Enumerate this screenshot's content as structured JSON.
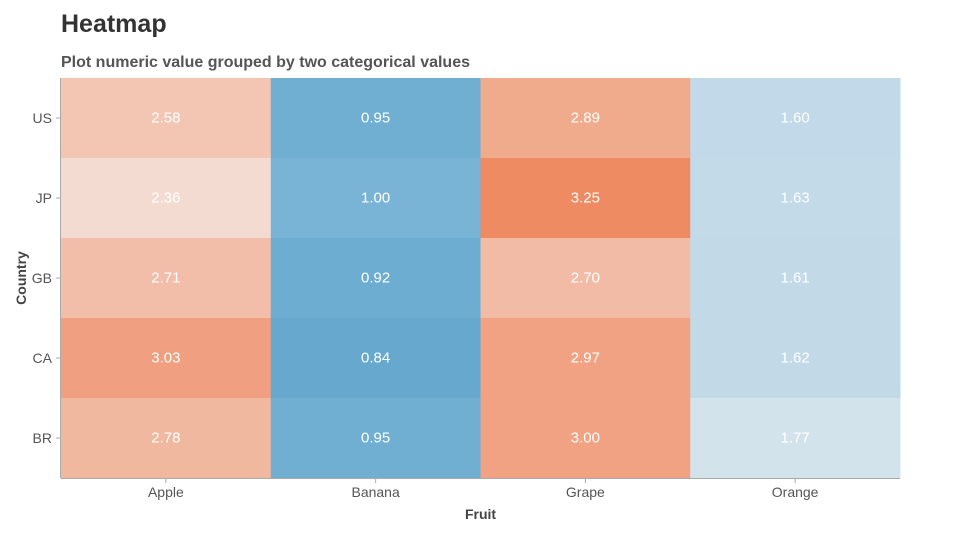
{
  "header": {
    "title": "Heatmap",
    "subtitle": "Plot numeric value grouped by two categorical values"
  },
  "chart_data": {
    "type": "heatmap",
    "xlabel": "Fruit",
    "ylabel": "Country",
    "x_categories": [
      "Apple",
      "Banana",
      "Grape",
      "Orange"
    ],
    "y_categories": [
      "US",
      "JP",
      "GB",
      "CA",
      "BR"
    ],
    "values": [
      [
        2.58,
        0.95,
        2.89,
        1.6
      ],
      [
        2.36,
        1.0,
        3.25,
        1.63
      ],
      [
        2.71,
        0.92,
        2.7,
        1.61
      ],
      [
        3.03,
        0.84,
        2.97,
        1.62
      ],
      [
        2.78,
        0.95,
        3.0,
        1.77
      ]
    ],
    "labels": [
      [
        "2.58",
        "0.95",
        "2.89",
        "1.60"
      ],
      [
        "2.36",
        "1.00",
        "3.25",
        "1.63"
      ],
      [
        "2.71",
        "0.92",
        "2.70",
        "1.61"
      ],
      [
        "3.03",
        "0.84",
        "2.97",
        "1.62"
      ],
      [
        "2.78",
        "0.95",
        "3.00",
        "1.77"
      ]
    ],
    "colors": [
      [
        "#f3c6b4",
        "#70afd2",
        "#f0ab8d",
        "#c1d9e8"
      ],
      [
        "#f4dbd1",
        "#79b3d5",
        "#ef8b63",
        "#c3dae9"
      ],
      [
        "#f2bda9",
        "#6cadd1",
        "#f1bba5",
        "#c2d9e8"
      ],
      [
        "#f0a080",
        "#67a9ce",
        "#f0a283",
        "#c2d9e8"
      ],
      [
        "#f1b8a0",
        "#70afd2",
        "#f0a283",
        "#d3e3ec"
      ]
    ]
  }
}
